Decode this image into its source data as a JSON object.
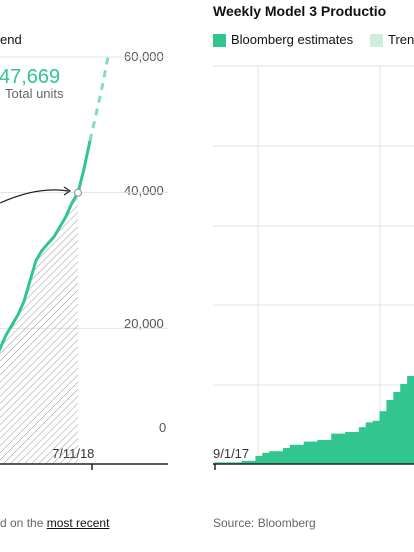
{
  "colors": {
    "accent": "#31c690",
    "accent_light": "#cdeedd",
    "grid": "#e3e3e3",
    "axis": "#222222",
    "hatch": "#9a9a9a"
  },
  "left_panel": {
    "legend_fragment": "end",
    "highlight_value": "47,669",
    "highlight_caption": "Total units",
    "footnote_prefix": "d on the",
    "footnote_link": "most recent"
  },
  "right_panel": {
    "title": "Weekly Model 3 Productio",
    "legend": [
      {
        "label": "Bloomberg estimates",
        "color": "#31c690"
      },
      {
        "label": "Trenc",
        "color": "#cdeedd"
      }
    ],
    "source": "Source: Bloomberg"
  },
  "chart_data": [
    {
      "type": "line",
      "title": "",
      "yticks": [
        "0",
        "20,000",
        "40,000",
        "60,000"
      ],
      "ylim": [
        0,
        60000
      ],
      "xtick_labels": [
        "7/11/18"
      ],
      "series": [
        {
          "style": "solid",
          "x": [
            -14,
            -13,
            -12,
            -11,
            -10,
            -9,
            -8,
            -7,
            -6,
            -5,
            -4,
            -3,
            -2,
            -1,
            0,
            1,
            2
          ],
          "y": [
            15000,
            17000,
            19000,
            20500,
            22000,
            24000,
            27000,
            30000,
            31500,
            32500,
            33500,
            35000,
            36500,
            38500,
            40000,
            43500,
            47669
          ]
        },
        {
          "style": "dashed",
          "x": [
            2,
            3,
            4,
            5
          ],
          "y": [
            47669,
            51500,
            55500,
            60000
          ]
        }
      ],
      "annotation_point": {
        "x": 0,
        "y": 40000
      }
    },
    {
      "type": "bar",
      "title": "Weekly Model 3 Productio",
      "xtick_labels": [
        "9/1/17"
      ],
      "series": [
        {
          "name": "Bloomberg estimates",
          "values": [
            0.1,
            0.1,
            0.1,
            0.1,
            0.2,
            0.2,
            0.5,
            0.7,
            0.8,
            0.8,
            1.0,
            1.2,
            1.2,
            1.4,
            1.4,
            1.5,
            1.5,
            1.9,
            1.9,
            2.0,
            2.0,
            2.3,
            2.6,
            2.7,
            3.3,
            4.0,
            4.5,
            5.0,
            5.5
          ]
        }
      ]
    }
  ]
}
